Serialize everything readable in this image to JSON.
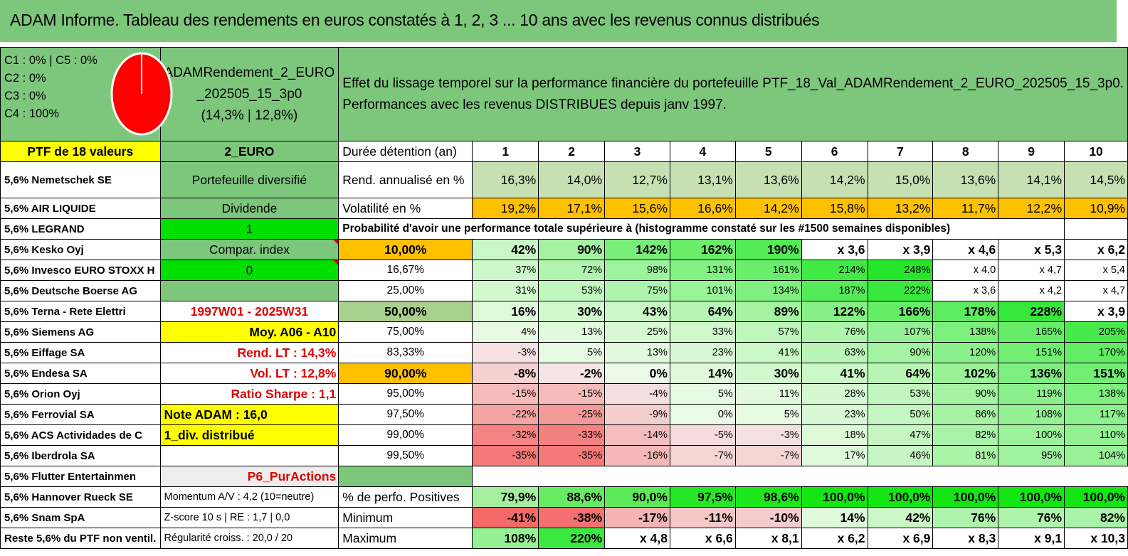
{
  "title": "ADAM Informe. Tableau des rendements en euros constatés à 1, 2, 3 ... 10 ans avec les revenus connus distribués",
  "legend": {
    "c1c5": "C1 : 0% | C5 : 0%",
    "c2": "C2 : 0%",
    "c3": "C3 : 0%",
    "c4": "C4 : 100%"
  },
  "pie": {
    "slices": [
      {
        "label": "C4",
        "value": 100,
        "color": "#ff0000"
      }
    ]
  },
  "portfolio": {
    "name_line1": "ADAMRendement_2_EURO",
    "name_line2": "_202505_15_3p0",
    "name_line3": "(14,3% | 12,8%)"
  },
  "effect": {
    "line1": "Effet du lissage temporel sur la performance financière du portefeuille PTF_18_Val_ADAMRendement_2_EURO_202505_15_3p0.",
    "line2": "Performances avec les revenus DISTRIBUES depuis janv 1997."
  },
  "header": {
    "ptf": "PTF de 18 valeurs",
    "code": "2_EURO",
    "duree": "Durée détention (an)",
    "years": [
      "1",
      "2",
      "3",
      "4",
      "5",
      "6",
      "7",
      "8",
      "9",
      "10"
    ]
  },
  "holdings": [
    "5,6% Nemetschek SE",
    "5,6% AIR LIQUIDE",
    "5,6% LEGRAND",
    "5,6% Kesko Oyj",
    "5,6% Invesco EURO STOXX H",
    "5,6% Deutsche Boerse AG",
    "5,6% Terna - Rete Elettri",
    "5,6% Siemens AG",
    "5,6% Eiffage SA",
    "5,6% Endesa SA",
    "5,6% Orion Oyj",
    "5,6% Ferrovial SA",
    "5,6% ACS Actividades de C",
    "5,6% Iberdrola SA",
    "5,6% Flutter Entertainmen",
    "5,6% Hannover Rueck SE",
    "5,6% Snam SpA",
    "Reste 5,6% du PTF non ventil."
  ],
  "info": [
    "Portefeuille diversifié",
    "Dividende",
    "1",
    "Compar. index",
    "0",
    "",
    "1997W01 - 2025W31",
    "Moy. A06 - A10",
    "Rend. LT : 14,3%",
    "Vol. LT : 12,8%",
    "Ratio Sharpe : 1,1",
    "Note ADAM : 16,0",
    "1_div. distribué",
    "",
    "P6_PurActions",
    "Momentum A/V : 4,2 (10=neutre)",
    "Z-score 10 s | RE : 1,7 | 0,0",
    "Régularité croiss. : 20,0 / 20"
  ],
  "rend": {
    "label": "Rend. annualisé en %",
    "values": [
      "16,3%",
      "14,0%",
      "12,7%",
      "13,1%",
      "13,6%",
      "14,2%",
      "15,0%",
      "13,6%",
      "14,1%",
      "14,5%"
    ]
  },
  "vol": {
    "label": "Volatilité en %",
    "values": [
      "19,2%",
      "17,1%",
      "15,6%",
      "16,6%",
      "14,2%",
      "15,8%",
      "13,2%",
      "11,7%",
      "12,2%",
      "10,9%"
    ]
  },
  "proba_title": "Probabilité d'avoir une performance totale supérieure à (histogramme constaté sur les #1500 semaines disponibles)",
  "proba": [
    {
      "p": "10,00%",
      "v": [
        "42%",
        "90%",
        "142%",
        "162%",
        "190%",
        "x 3,6",
        "x 3,9",
        "x 4,6",
        "x 5,3",
        "x 6,2"
      ]
    },
    {
      "p": "16,67%",
      "v": [
        "37%",
        "72%",
        "98%",
        "131%",
        "161%",
        "214%",
        "248%",
        "x 4,0",
        "x 4,7",
        "x 5,4"
      ]
    },
    {
      "p": "25,00%",
      "v": [
        "31%",
        "53%",
        "75%",
        "101%",
        "134%",
        "187%",
        "222%",
        "x 3,6",
        "x 4,2",
        "x 4,7"
      ]
    },
    {
      "p": "50,00%",
      "v": [
        "16%",
        "30%",
        "43%",
        "64%",
        "89%",
        "122%",
        "166%",
        "178%",
        "228%",
        "x 3,9"
      ]
    },
    {
      "p": "75,00%",
      "v": [
        "4%",
        "13%",
        "25%",
        "33%",
        "57%",
        "76%",
        "107%",
        "138%",
        "165%",
        "205%"
      ]
    },
    {
      "p": "83,33%",
      "v": [
        "-3%",
        "5%",
        "13%",
        "23%",
        "41%",
        "63%",
        "90%",
        "120%",
        "151%",
        "170%"
      ]
    },
    {
      "p": "90,00%",
      "v": [
        "-8%",
        "-2%",
        "0%",
        "14%",
        "30%",
        "41%",
        "64%",
        "102%",
        "136%",
        "151%"
      ]
    },
    {
      "p": "95,00%",
      "v": [
        "-15%",
        "-15%",
        "-4%",
        "5%",
        "11%",
        "28%",
        "53%",
        "90%",
        "119%",
        "138%"
      ]
    },
    {
      "p": "97,50%",
      "v": [
        "-22%",
        "-25%",
        "-9%",
        "0%",
        "5%",
        "23%",
        "50%",
        "86%",
        "108%",
        "117%"
      ]
    },
    {
      "p": "99,00%",
      "v": [
        "-32%",
        "-33%",
        "-14%",
        "-5%",
        "-3%",
        "18%",
        "47%",
        "82%",
        "100%",
        "110%"
      ]
    },
    {
      "p": "99,50%",
      "v": [
        "-35%",
        "-35%",
        "-16%",
        "-7%",
        "-7%",
        "17%",
        "46%",
        "81%",
        "95%",
        "104%"
      ]
    }
  ],
  "positives": {
    "label": "% de perfo. Positives",
    "values": [
      "79,9%",
      "88,6%",
      "90,0%",
      "97,5%",
      "98,6%",
      "100,0%",
      "100,0%",
      "100,0%",
      "100,0%",
      "100,0%"
    ]
  },
  "minimum": {
    "label": "Minimum",
    "values": [
      "-41%",
      "-38%",
      "-17%",
      "-11%",
      "-10%",
      "14%",
      "42%",
      "76%",
      "76%",
      "82%"
    ]
  },
  "maximum": {
    "label": "Maximum",
    "values": [
      "108%",
      "220%",
      "x 4,8",
      "x 6,6",
      "x 8,1",
      "x 6,2",
      "x 6,9",
      "x 8,3",
      "x 9,1",
      "x 10,3"
    ]
  },
  "colors": {
    "green_header": "#7dc77d",
    "yellow": "#ffff00",
    "bright_green": "#00e000",
    "orange": "#ffc000",
    "red_text": "#e00000"
  }
}
